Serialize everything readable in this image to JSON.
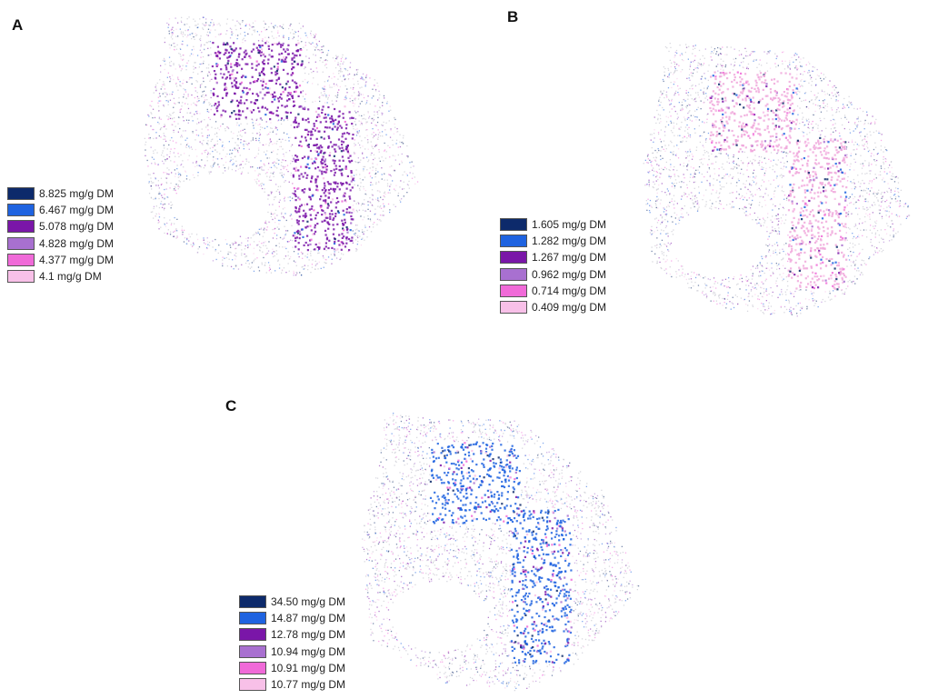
{
  "panels": [
    {
      "letter": "A",
      "legend": [
        {
          "label": "8.825 mg/g DM",
          "color": "#0d2a6b"
        },
        {
          "label": "6.467 mg/g DM",
          "color": "#1f63e0"
        },
        {
          "label": "5.078 mg/g DM",
          "color": "#7a16a8"
        },
        {
          "label": "4.828 mg/g DM",
          "color": "#a870d0"
        },
        {
          "label": "4.377 mg/g DM",
          "color": "#f06ad8"
        },
        {
          "label": "4.1 mg/g DM",
          "color": "#f8c0e8"
        }
      ],
      "dominant_color": "#7a16a8"
    },
    {
      "letter": "B",
      "legend": [
        {
          "label": "1.605 mg/g DM",
          "color": "#0d2a6b"
        },
        {
          "label": "1.282 mg/g DM",
          "color": "#1f63e0"
        },
        {
          "label": "1.267 mg/g DM",
          "color": "#7a16a8"
        },
        {
          "label": "0.962 mg/g DM",
          "color": "#a870d0"
        },
        {
          "label": "0.714 mg/g DM",
          "color": "#f06ad8"
        },
        {
          "label": "0.409 mg/g DM",
          "color": "#f8c0e8"
        }
      ],
      "dominant_color": "#f0a8dc"
    },
    {
      "letter": "C",
      "legend": [
        {
          "label": "34.50 mg/g DM",
          "color": "#0d2a6b"
        },
        {
          "label": "14.87 mg/g DM",
          "color": "#1f63e0"
        },
        {
          "label": "12.78 mg/g DM",
          "color": "#7a16a8"
        },
        {
          "label": "10.94 mg/g DM",
          "color": "#a870d0"
        },
        {
          "label": "10.91 mg/g DM",
          "color": "#f06ad8"
        },
        {
          "label": "10.77 mg/g DM",
          "color": "#f8c0e8"
        }
      ],
      "dominant_color": "#1f63e0"
    }
  ]
}
